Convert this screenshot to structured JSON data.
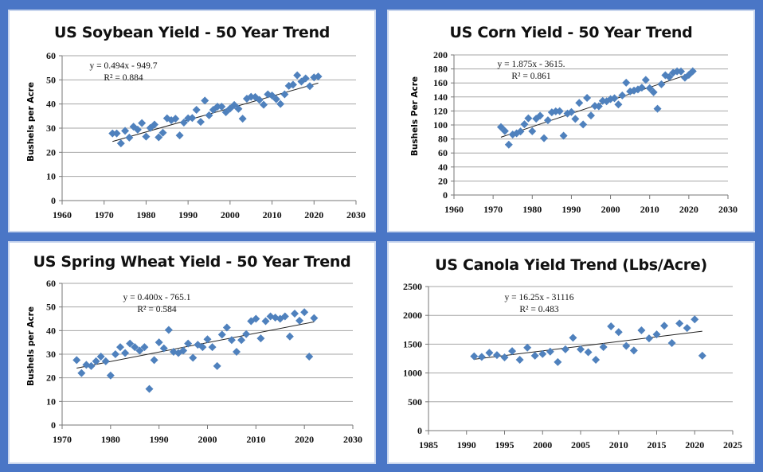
{
  "colors": {
    "background": "#4a76c6",
    "marker": "#4f81bd",
    "trendline": "#222222",
    "grid": "#a6a6a6"
  },
  "chart_data": [
    {
      "type": "scatter",
      "title": "US Soybean Yield - 50 Year Trend",
      "ylabel": "Bushels per Acre",
      "xlabel": "",
      "xlim": [
        1960,
        2030
      ],
      "xstep": 10,
      "ylim": [
        0,
        60
      ],
      "ystep": 10,
      "grid": "horizontal",
      "marker": "diamond",
      "equation": "y = 0.494x - 949.7",
      "r2": "R² = 0.884",
      "trendline": {
        "slope": 0.494,
        "intercept": -949.7
      },
      "x_start": 1972,
      "y": [
        27.8,
        27.8,
        23.7,
        28.9,
        26.1,
        30.6,
        29.4,
        32.1,
        26.5,
        30.1,
        31.5,
        26.2,
        28.1,
        34.1,
        33.3,
        33.9,
        27.0,
        32.3,
        34.1,
        34.2,
        37.6,
        32.6,
        41.4,
        35.3,
        37.6,
        38.9,
        38.9,
        36.6,
        38.1,
        39.6,
        38.0,
        33.9,
        42.2,
        43.0,
        42.9,
        41.7,
        39.7,
        44.0,
        43.5,
        42.0,
        40.0,
        44.0,
        47.5,
        48.0,
        51.9,
        49.3,
        50.6,
        47.4,
        51.0,
        51.4
      ]
    },
    {
      "type": "scatter",
      "title": "US Corn Yield - 50 Year Trend",
      "ylabel": "Bushels Per Acre",
      "xlabel": "",
      "xlim": [
        1960,
        2030
      ],
      "xstep": 10,
      "ylim": [
        0,
        200
      ],
      "ystep": 20,
      "grid": "horizontal",
      "marker": "diamond",
      "equation": "y = 1.875x - 3615.",
      "r2": "R² = 0.861",
      "trendline": {
        "slope": 1.875,
        "intercept": -3615
      },
      "x_start": 1972,
      "y": [
        97.0,
        91.3,
        71.9,
        86.4,
        88.0,
        90.8,
        101.0,
        109.5,
        91.0,
        108.9,
        113.2,
        81.1,
        106.7,
        118.0,
        119.4,
        119.8,
        84.6,
        116.3,
        118.5,
        108.6,
        131.5,
        100.7,
        138.6,
        113.5,
        127.1,
        126.7,
        134.4,
        133.8,
        136.9,
        138.2,
        129.3,
        142.2,
        160.3,
        147.9,
        149.1,
        150.7,
        153.3,
        164.4,
        152.6,
        146.8,
        123.1,
        158.1,
        171.0,
        168.4,
        174.6,
        176.6,
        176.4,
        167.5,
        171.4,
        176.7
      ]
    },
    {
      "type": "scatter",
      "title": "US Spring Wheat Yield - 50 Year Trend",
      "ylabel": "Bushels per Acre",
      "xlabel": "",
      "xlim": [
        1970,
        2030
      ],
      "xstep": 10,
      "ylim": [
        0,
        60
      ],
      "ystep": 10,
      "grid": "horizontal",
      "marker": "diamond",
      "equation": "y = 0.400x - 765.1",
      "r2": "R² = 0.584",
      "trendline": {
        "slope": 0.4,
        "intercept": -765.1
      },
      "x_start": 1973,
      "y": [
        27.5,
        22,
        25.5,
        25,
        27,
        29,
        27,
        21,
        30,
        33,
        30.5,
        34.5,
        33,
        31.5,
        33,
        15.3,
        27.5,
        35,
        32.5,
        40.3,
        31,
        30.5,
        31.5,
        34.5,
        28.5,
        34,
        33,
        36.3,
        33,
        25,
        38.3,
        41.3,
        36,
        31,
        36,
        38.5,
        44,
        45,
        36.7,
        44,
        46,
        45.5,
        45,
        46,
        37.5,
        47.2,
        44.2,
        47.8,
        29,
        45.3
      ]
    },
    {
      "type": "scatter",
      "title": "US Canola Yield Trend (Lbs/Acre)",
      "ylabel": "",
      "xlabel": "",
      "xlim": [
        1985,
        2025
      ],
      "xstep": 5,
      "ylim": [
        0,
        2500
      ],
      "ystep": 500,
      "grid": "horizontal",
      "marker": "diamond",
      "equation": "y = 16.25x - 31116",
      "r2": "R² = 0.483",
      "trendline": {
        "slope": 16.25,
        "intercept": -31116
      },
      "x_start": 1991,
      "y": [
        1290,
        1280,
        1350,
        1310,
        1270,
        1380,
        1230,
        1440,
        1300,
        1330,
        1370,
        1190,
        1410,
        1610,
        1410,
        1360,
        1230,
        1450,
        1810,
        1710,
        1470,
        1390,
        1740,
        1600,
        1670,
        1820,
        1520,
        1860,
        1780,
        1930,
        1300
      ]
    }
  ]
}
